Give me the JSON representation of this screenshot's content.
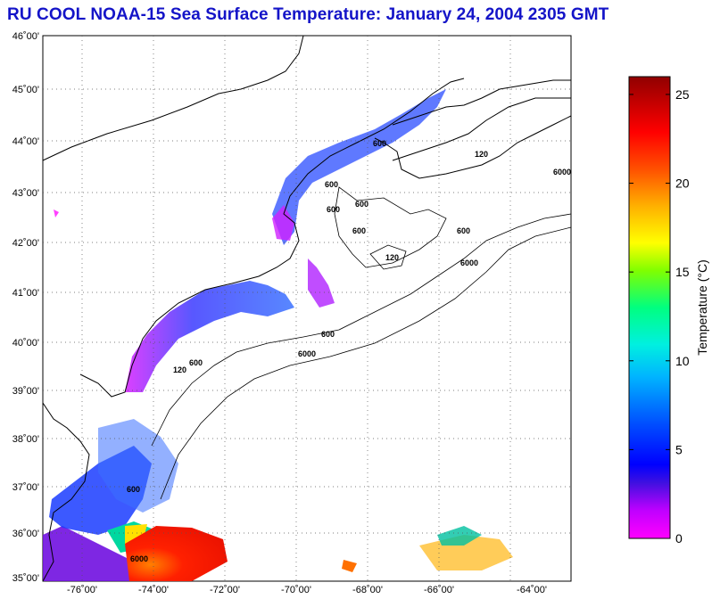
{
  "title": "RU COOL  NOAA-15  Sea Surface Temperature:  January 24, 2004 2305 GMT",
  "map": {
    "lat_labels": [
      "46˚00'",
      "45˚00'",
      "44˚00'",
      "43˚00'",
      "42˚00'",
      "41˚00'",
      "40˚00'",
      "39˚00'",
      "38˚00'",
      "37˚00'",
      "36˚00'",
      "35˚00'"
    ],
    "lon_labels": [
      "-76˚00'",
      "-74˚00'",
      "-72˚00'",
      "-70˚00'",
      "-68˚00'",
      "-66˚00'",
      "-64˚00'"
    ],
    "contour_labels": [
      "600",
      "600",
      "600",
      "600",
      "600",
      "600",
      "120",
      "120",
      "6000",
      "6000",
      "600",
      "120",
      "600",
      "6000",
      "600",
      "6000"
    ]
  },
  "colorbar": {
    "title": "Temperature (°C)",
    "ticks": [
      "25",
      "20",
      "15",
      "10",
      "5",
      "0"
    ],
    "values": [
      25,
      20,
      15,
      10,
      5,
      0
    ],
    "min": 0,
    "max": 26
  },
  "colors": {
    "title": "#1414c8",
    "background": "#ffffff"
  }
}
